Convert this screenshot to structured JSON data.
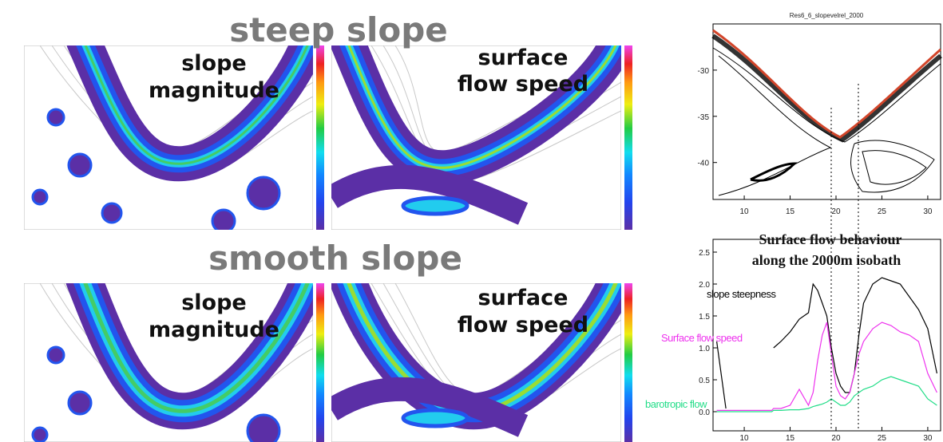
{
  "rows": [
    {
      "title": "steep slope",
      "panels": [
        {
          "label": [
            "slope",
            "magnitude"
          ]
        },
        {
          "label": [
            "surface",
            "flow speed"
          ]
        }
      ]
    },
    {
      "title": "smooth slope",
      "panels": [
        {
          "label": [
            "slope",
            "magnitude"
          ]
        },
        {
          "label": [
            "surface",
            "flow speed"
          ]
        }
      ]
    }
  ],
  "map": {
    "title": "Res6_6_slopevelrel_2000",
    "xlim": [
      6.6,
      31.4
    ],
    "ylim": [
      -44,
      -25
    ],
    "xticks": [
      10,
      15,
      20,
      25,
      30
    ],
    "yticks": [
      -30,
      -35,
      -40
    ]
  },
  "chart_data": {
    "type": "line",
    "title": "Surface flow behaviour",
    "subtitle": "along the 2000m isobath",
    "x": [
      7,
      8,
      9,
      10,
      11,
      12,
      13,
      13.2,
      14,
      15,
      16,
      17,
      17.5,
      18,
      18.5,
      19,
      19.5,
      20,
      20.5,
      21,
      21.5,
      22,
      22.5,
      23,
      24,
      25,
      26,
      27,
      28,
      29,
      30,
      31
    ],
    "series": [
      {
        "name": "slope steepness",
        "color": "#000000",
        "values": [
          1.1,
          0.05,
          null,
          null,
          null,
          null,
          null,
          1.0,
          1.1,
          1.25,
          1.45,
          1.55,
          2.0,
          1.9,
          1.7,
          1.5,
          1.0,
          0.6,
          0.4,
          0.3,
          0.3,
          0.6,
          1.2,
          1.7,
          2.0,
          2.1,
          2.05,
          2.0,
          1.8,
          1.6,
          1.3,
          0.6
        ]
      },
      {
        "name": "Surface flow speed",
        "color": "#ee33ee",
        "values": [
          0.02,
          0.02,
          0.02,
          0.02,
          0.02,
          0.02,
          0.02,
          0.05,
          0.05,
          0.1,
          0.35,
          0.1,
          0.3,
          0.8,
          1.2,
          1.4,
          0.9,
          0.4,
          0.25,
          0.2,
          0.3,
          0.6,
          0.9,
          1.1,
          1.3,
          1.4,
          1.35,
          1.25,
          1.2,
          1.1,
          0.6,
          0.3
        ]
      },
      {
        "name": "barotropic flow",
        "color": "#22dd88",
        "values": [
          0,
          0,
          0,
          0,
          0,
          0,
          0,
          0.02,
          0.02,
          0.03,
          0.03,
          0.05,
          0.08,
          0.1,
          0.12,
          0.15,
          0.2,
          0.15,
          0.1,
          0.1,
          0.15,
          0.25,
          0.3,
          0.35,
          0.4,
          0.5,
          0.55,
          0.5,
          0.45,
          0.4,
          0.2,
          0.1
        ]
      }
    ],
    "xlim": [
      6.6,
      31.4
    ],
    "ylim": [
      -0.3,
      2.7
    ],
    "xticks": [
      10,
      15,
      20,
      25,
      30
    ],
    "yticks": [
      {
        "value": 0,
        "label": "0.0"
      },
      0.5,
      {
        "value": 1,
        "label": "1.0"
      },
      1.5,
      {
        "value": 2,
        "label": "2.0"
      },
      2.5
    ]
  }
}
